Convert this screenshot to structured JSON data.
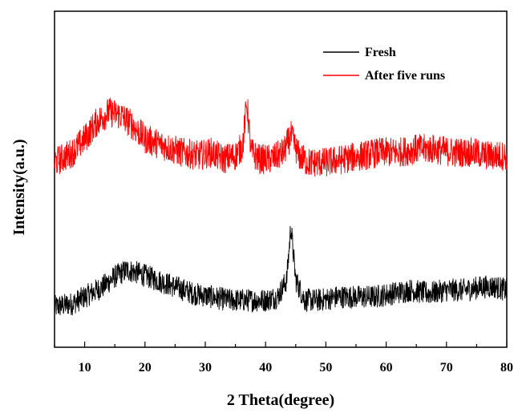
{
  "chart_data": {
    "type": "line",
    "title": "",
    "xlabel": "2 Theta(degree)",
    "ylabel": "Intensity(a.u.)",
    "xlim": [
      5,
      80
    ],
    "x_ticks": [
      10,
      20,
      30,
      40,
      50,
      60,
      70,
      80
    ],
    "y_ticks_shown": false,
    "grid": false,
    "legend": {
      "placement": "top-right",
      "entries": [
        "Fresh",
        "After five runs"
      ]
    },
    "series": [
      {
        "name": "Fresh",
        "color": "#000000",
        "x": [
          5,
          8,
          10,
          13,
          15,
          17,
          19,
          22,
          25,
          28,
          31,
          34,
          37,
          40,
          42,
          43.5,
          44.2,
          45,
          46.5,
          49,
          52,
          55,
          58,
          61,
          64,
          67,
          70,
          73,
          76,
          78,
          80
        ],
        "y": [
          0.12,
          0.13,
          0.15,
          0.18,
          0.21,
          0.23,
          0.22,
          0.2,
          0.18,
          0.16,
          0.15,
          0.14,
          0.14,
          0.14,
          0.15,
          0.2,
          0.36,
          0.2,
          0.14,
          0.14,
          0.15,
          0.15,
          0.15,
          0.16,
          0.17,
          0.16,
          0.17,
          0.17,
          0.18,
          0.18,
          0.17
        ],
        "noise": 0.035
      },
      {
        "name": "After five runs",
        "color": "#ff0000",
        "x": [
          5,
          8,
          10,
          12,
          14,
          16,
          18,
          20,
          23,
          26,
          29,
          31,
          33,
          35,
          36.2,
          36.9,
          37.6,
          39,
          41,
          43,
          44.2,
          45.5,
          47,
          50,
          53,
          56,
          59,
          62,
          65,
          68,
          71,
          74,
          77,
          80
        ],
        "y": [
          0.55,
          0.58,
          0.62,
          0.67,
          0.7,
          0.69,
          0.66,
          0.62,
          0.6,
          0.58,
          0.57,
          0.58,
          0.56,
          0.57,
          0.6,
          0.73,
          0.58,
          0.56,
          0.56,
          0.58,
          0.63,
          0.57,
          0.55,
          0.55,
          0.56,
          0.57,
          0.58,
          0.58,
          0.59,
          0.59,
          0.58,
          0.58,
          0.57,
          0.57
        ],
        "noise": 0.045
      }
    ]
  }
}
